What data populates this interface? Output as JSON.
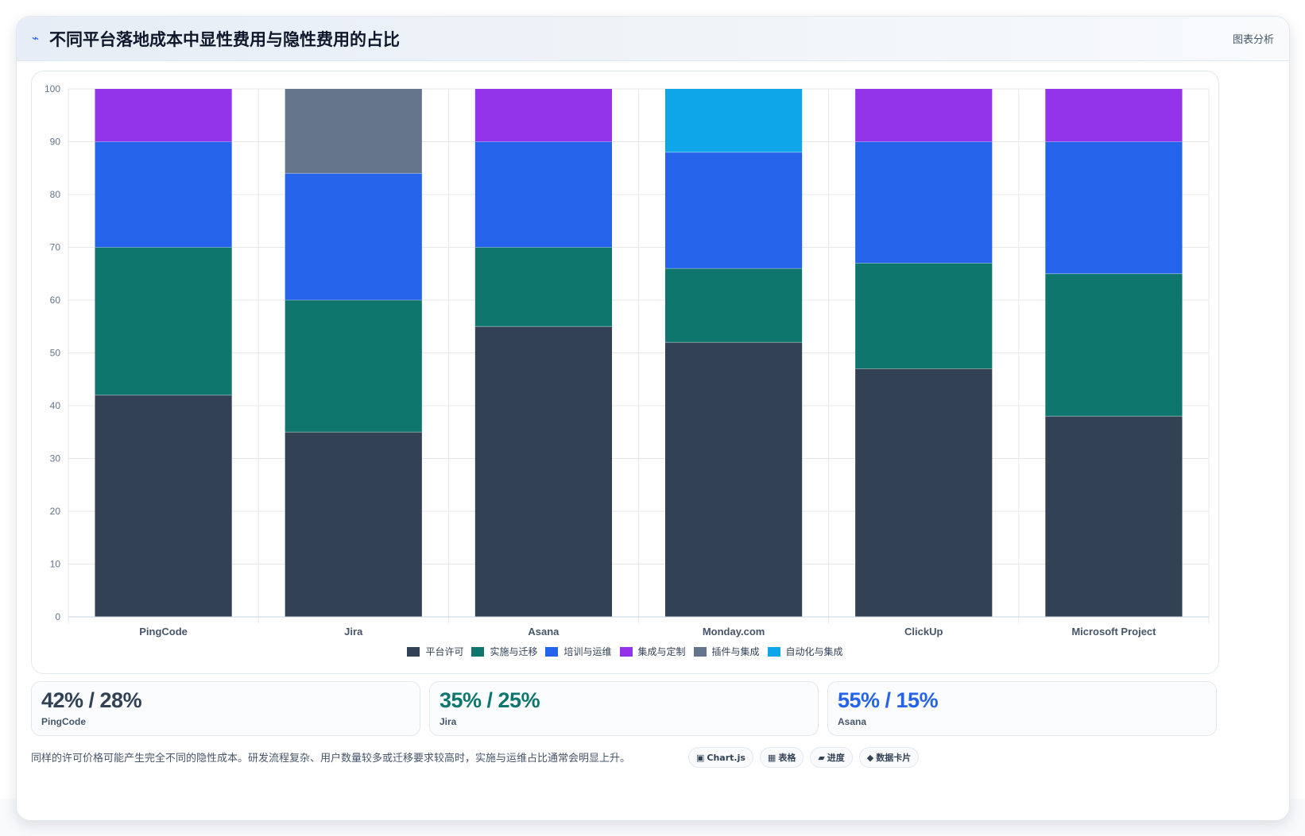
{
  "header": {
    "icon": "chart-icon",
    "title": "不同平台落地成本中显性费用与隐性费用的占比",
    "tag": "图表分析"
  },
  "chart_data": {
    "type": "bar",
    "stacked": true,
    "categories": [
      "PingCode",
      "Jira",
      "Asana",
      "Monday.com",
      "ClickUp",
      "Microsoft Project"
    ],
    "ylim": [
      0,
      100
    ],
    "yticks": [
      0,
      10,
      20,
      30,
      40,
      50,
      60,
      70,
      80,
      90,
      100
    ],
    "grid": true,
    "legend_position": "bottom",
    "series": [
      {
        "name": "平台许可",
        "color": "#334155",
        "values": [
          42,
          35,
          55,
          52,
          47,
          38
        ]
      },
      {
        "name": "实施与迁移",
        "color": "#0f766e",
        "values": [
          28,
          25,
          15,
          14,
          20,
          27
        ]
      },
      {
        "name": "培训与运维",
        "color": "#2563eb",
        "values": [
          20,
          24,
          20,
          22,
          23,
          25
        ]
      },
      {
        "name": "集成与定制",
        "color": "#9333ea",
        "values": [
          10,
          0,
          10,
          0,
          10,
          10
        ]
      },
      {
        "name": "插件与集成",
        "color": "#64748b",
        "values": [
          0,
          16,
          0,
          0,
          0,
          0
        ]
      },
      {
        "name": "自动化与集成",
        "color": "#0ea5e9",
        "values": [
          0,
          0,
          0,
          12,
          0,
          0
        ]
      }
    ]
  },
  "stats": [
    {
      "value": "42% / 28%",
      "label": "PingCode",
      "color": "#334155"
    },
    {
      "value": "35% / 25%",
      "label": "Jira",
      "color": "#0f766e"
    },
    {
      "value": "55% / 15%",
      "label": "Asana",
      "color": "#2563eb"
    }
  ],
  "footnote": "同样的许可价格可能产生完全不同的隐性成本。研发流程复杂、用户数量较多或迁移要求较高时，实施与运维占比通常会明显上升。",
  "badges": [
    {
      "icon": "chartjs-icon",
      "glyph": "▣",
      "label": "Chart.js"
    },
    {
      "icon": "table-icon",
      "glyph": "▦",
      "label": "表格"
    },
    {
      "icon": "progress-icon",
      "glyph": "▰",
      "label": "进度"
    },
    {
      "icon": "data-card-icon",
      "glyph": "◆",
      "label": "数据卡片"
    }
  ]
}
